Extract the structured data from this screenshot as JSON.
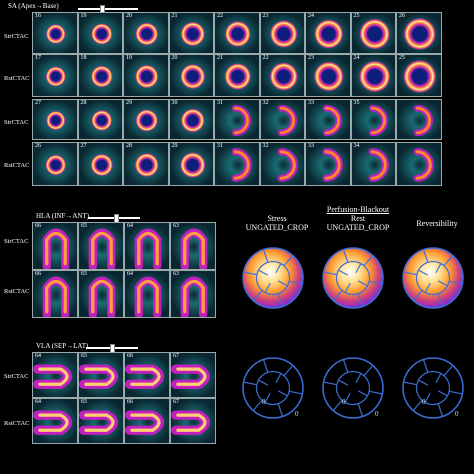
{
  "sa": {
    "title": "SA (Apex→Base)",
    "slider_pos": 0.45,
    "rows": [
      {
        "label": "StrCTAC",
        "slices": [
          "16",
          "19",
          "20",
          "21",
          "22",
          "23",
          "24",
          "25",
          "26"
        ]
      },
      {
        "label": "RstCTAC",
        "slices": [
          "17",
          "18",
          "19",
          "20",
          "21",
          "22",
          "23",
          "24",
          "25"
        ]
      },
      {
        "label": "StrCTAC",
        "slices": [
          "27",
          "28",
          "29",
          "30",
          "31",
          "32",
          "33",
          "35",
          ""
        ]
      },
      {
        "label": "RstCTAC",
        "slices": [
          "26",
          "27",
          "28",
          "29",
          "31",
          "32",
          "33",
          "34",
          ""
        ]
      }
    ]
  },
  "hla": {
    "title": "HLA (INF→ANT)",
    "slider_pos": 0.55,
    "rows": [
      {
        "label": "StrCTAC",
        "slices": [
          "66",
          "65",
          "64",
          "63"
        ]
      },
      {
        "label": "RstCTAC",
        "slices": [
          "66",
          "65",
          "64",
          "63"
        ]
      }
    ]
  },
  "vla": {
    "title": "VLA (SEP→LAT)",
    "slider_pos": 0.5,
    "rows": [
      {
        "label": "StrCTAC",
        "slices": [
          "64",
          "65",
          "66",
          "67"
        ]
      },
      {
        "label": "RstCTAC",
        "slices": [
          "64",
          "65",
          "66",
          "67"
        ]
      }
    ]
  },
  "polar": {
    "group_title": "Perfusion-Blackout",
    "maps": [
      {
        "line1": "Stress",
        "line2": "UNGATED_CROP"
      },
      {
        "line1": "Rest",
        "line2": "UNGATED_CROP"
      },
      {
        "line1": "Reversibility",
        "line2": ""
      }
    ],
    "values": {
      "left": [
        "8",
        "0"
      ],
      "mid": [
        "0",
        "0"
      ],
      "right": [
        "0",
        "0"
      ]
    }
  },
  "colors": {
    "ring_hot": "#fff3c0",
    "ring_mid": "#ff8a2a",
    "ring_outer": "#c21fbf",
    "ring_edge": "#5a2bd6",
    "background_tissue": "#1a6b72",
    "polar_line": "#3a6fd8"
  }
}
